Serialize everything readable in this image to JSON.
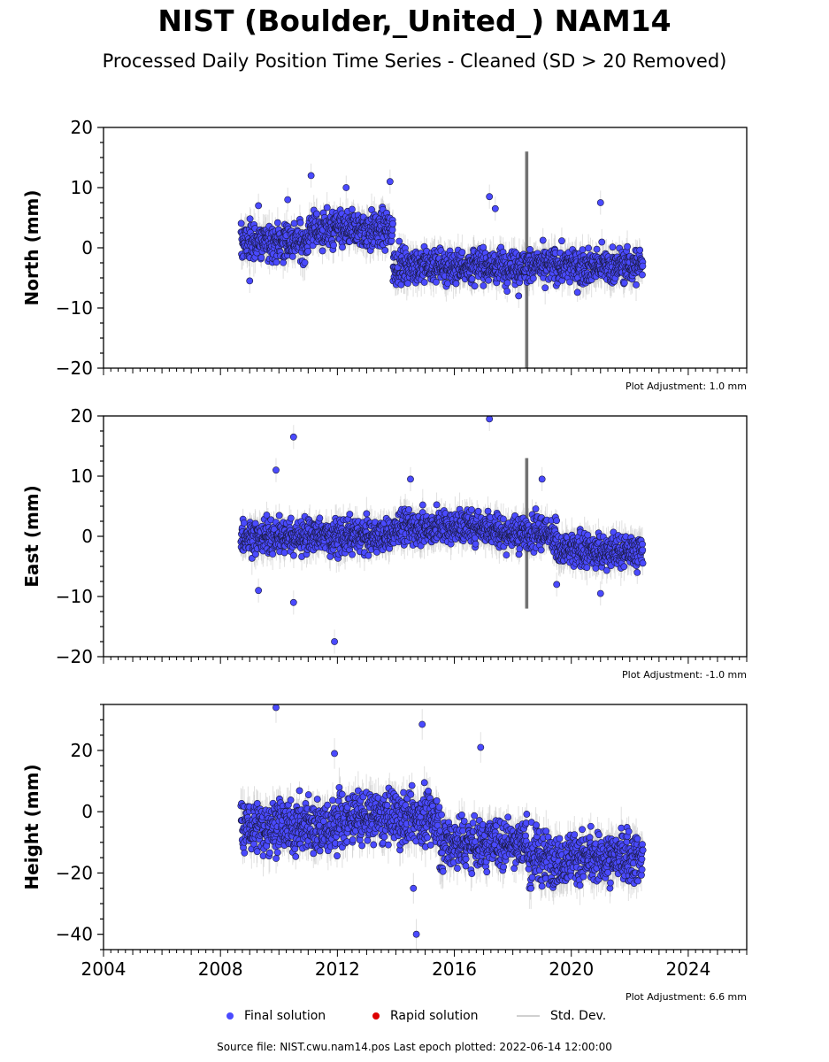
{
  "title": "NIST (Boulder,_United_) NAM14",
  "subtitle": "Processed Daily Position Time Series - Cleaned (SD > 20 Removed)",
  "legend": {
    "final": "Final solution",
    "rapid": "Rapid solution",
    "std": "Std. Dev."
  },
  "source": "Source file: NIST.cwu.nam14.pos  Last epoch plotted: 2022-06-14 12:00:00",
  "colors": {
    "final": "#4a4aff",
    "rapid": "#dd0000",
    "std_dev": "#c8c8c8",
    "marker_edge": "#1a1a40"
  },
  "chart_data": [
    {
      "type": "scatter",
      "name": "north",
      "ylabel": "North (mm)",
      "xlim": [
        2004,
        2026
      ],
      "ylim": [
        -20,
        20
      ],
      "yticks": [
        -20,
        -10,
        0,
        10,
        20
      ],
      "xtick_labels_shown": false,
      "adjustment": "Plot Adjustment: 1.0 mm",
      "segments": [
        {
          "x": [
            2008.7,
            2011.0
          ],
          "level": 1.0,
          "spread": 2.2
        },
        {
          "x": [
            2011.0,
            2013.9
          ],
          "level": 3.0,
          "spread": 2.2
        },
        {
          "x": [
            2013.9,
            2022.45
          ],
          "level": -3.0,
          "spread": 2.0
        }
      ],
      "outliers": [
        [
          2009.3,
          7.0
        ],
        [
          2010.3,
          8.0
        ],
        [
          2011.1,
          12.0
        ],
        [
          2012.3,
          10.0
        ],
        [
          2013.8,
          11.0
        ],
        [
          2017.2,
          8.5
        ],
        [
          2017.4,
          6.5
        ],
        [
          2021.0,
          7.5
        ],
        [
          2018.2,
          -8.0
        ],
        [
          2009.0,
          -5.5
        ]
      ]
    },
    {
      "type": "scatter",
      "name": "east",
      "ylabel": "East (mm)",
      "xlim": [
        2004,
        2026
      ],
      "ylim": [
        -20,
        20
      ],
      "yticks": [
        -20,
        -10,
        0,
        10,
        20
      ],
      "xtick_labels_shown": false,
      "adjustment": "Plot Adjustment: -1.0 mm",
      "segments": [
        {
          "x": [
            2008.7,
            2013.9
          ],
          "level": 0.0,
          "spread": 2.0
        },
        {
          "x": [
            2013.9,
            2017.5
          ],
          "level": 1.5,
          "spread": 2.0
        },
        {
          "x": [
            2017.5,
            2019.5
          ],
          "level": 0.5,
          "spread": 2.0
        },
        {
          "x": [
            2019.5,
            2022.45
          ],
          "level": -2.5,
          "spread": 2.0
        }
      ],
      "outliers": [
        [
          2009.3,
          -9.0
        ],
        [
          2009.9,
          11.0
        ],
        [
          2010.5,
          16.5
        ],
        [
          2010.5,
          -11.0
        ],
        [
          2011.9,
          -17.5
        ],
        [
          2017.2,
          19.5
        ],
        [
          2019.0,
          9.5
        ],
        [
          2019.5,
          -8.0
        ],
        [
          2021.0,
          -9.5
        ],
        [
          2014.5,
          9.5
        ]
      ]
    },
    {
      "type": "scatter",
      "name": "height",
      "ylabel": "Height (mm)",
      "xlim": [
        2004,
        2026
      ],
      "ylim": [
        -45,
        35
      ],
      "yticks": [
        -40,
        -20,
        0,
        20
      ],
      "xticks": [
        2004,
        2008,
        2012,
        2016,
        2020,
        2024
      ],
      "xtick_labels": [
        "2004",
        "2008",
        "2012",
        "2016",
        "2020",
        "2024"
      ],
      "adjustment": "Plot Adjustment: 6.6 mm",
      "segments": [
        {
          "x": [
            2008.7,
            2012.0
          ],
          "level": -5.0,
          "spread": 6.0
        },
        {
          "x": [
            2012.0,
            2015.5
          ],
          "level": -2.0,
          "spread": 6.0
        },
        {
          "x": [
            2015.5,
            2018.5
          ],
          "level": -10.0,
          "spread": 6.0
        },
        {
          "x": [
            2018.5,
            2022.45
          ],
          "level": -15.0,
          "spread": 6.0
        }
      ],
      "outliers": [
        [
          2009.9,
          34.0
        ],
        [
          2014.9,
          28.5
        ],
        [
          2014.7,
          -40.0
        ],
        [
          2011.9,
          19.0
        ],
        [
          2016.9,
          21.0
        ],
        [
          2014.6,
          -25.0
        ]
      ]
    }
  ]
}
